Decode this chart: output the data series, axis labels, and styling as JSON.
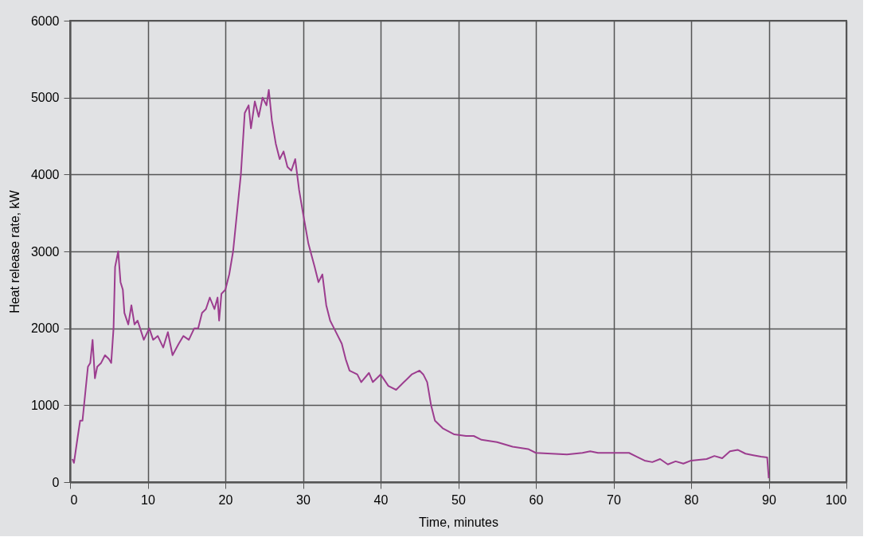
{
  "chart_data": {
    "type": "line",
    "xlabel": "Time, minutes",
    "ylabel": "Heat release rate, kW",
    "xlim": [
      0,
      100
    ],
    "xticks": [
      0,
      10,
      20,
      30,
      40,
      50,
      60,
      70,
      80,
      90,
      100
    ],
    "ylim": [
      0,
      6000
    ],
    "yticks": [
      0,
      1000,
      2000,
      3000,
      4000,
      5000,
      6000
    ],
    "grid": true,
    "marker": "none",
    "line_style": "solid",
    "series": [
      {
        "color": "#9c3d8f",
        "x": [
          0.3,
          0.5,
          1,
          1.3,
          1.6,
          2,
          2.3,
          2.6,
          2.9,
          3.2,
          3.5,
          4,
          4.5,
          5,
          5.3,
          5.6,
          5.8,
          6.2,
          6.5,
          6.8,
          7,
          7.5,
          7.9,
          8.3,
          8.7,
          9.5,
          10.2,
          10.7,
          11.3,
          12,
          12.6,
          13.2,
          14,
          14.6,
          15.3,
          16,
          16.5,
          17,
          17.5,
          18,
          18.6,
          19,
          19.2,
          19.5,
          20,
          20.5,
          21,
          21.5,
          22,
          22.5,
          23,
          23.3,
          23.8,
          24.3,
          24.8,
          25.3,
          25.6,
          26,
          26.5,
          27,
          27.5,
          28,
          28.5,
          29,
          29.5,
          30,
          30.7,
          31.5,
          32,
          32.5,
          33,
          33.5,
          34,
          35,
          35.5,
          36,
          37,
          37.5,
          38.5,
          39,
          40,
          41,
          42,
          43,
          44,
          45,
          45.5,
          46,
          46.5,
          47,
          48,
          49.5,
          51,
          52,
          53,
          55,
          57,
          59,
          60,
          62,
          64,
          66,
          67,
          68,
          70,
          72,
          73,
          74,
          75,
          76,
          77,
          78,
          79,
          80,
          82,
          83,
          84,
          85,
          86,
          87,
          88,
          89,
          89.8,
          90
        ],
        "values": [
          300,
          250,
          600,
          800,
          800,
          1200,
          1500,
          1550,
          1850,
          1350,
          1500,
          1550,
          1650,
          1600,
          1550,
          2000,
          2800,
          3000,
          2600,
          2500,
          2200,
          2050,
          2300,
          2050,
          2100,
          1850,
          2000,
          1850,
          1900,
          1750,
          1950,
          1650,
          1800,
          1900,
          1850,
          2000,
          2000,
          2200,
          2250,
          2400,
          2250,
          2400,
          2100,
          2450,
          2500,
          2700,
          3000,
          3500,
          4000,
          4800,
          4900,
          4600,
          4950,
          4750,
          5000,
          4900,
          5100,
          4700,
          4400,
          4200,
          4300,
          4100,
          4050,
          4200,
          3800,
          3500,
          3100,
          2800,
          2600,
          2700,
          2300,
          2100,
          2000,
          1800,
          1600,
          1450,
          1400,
          1300,
          1420,
          1300,
          1400,
          1250,
          1200,
          1300,
          1400,
          1450,
          1400,
          1300,
          1000,
          800,
          700,
          620,
          600,
          600,
          550,
          520,
          460,
          430,
          380,
          370,
          360,
          380,
          400,
          380,
          380,
          380,
          330,
          280,
          260,
          300,
          230,
          270,
          240,
          280,
          300,
          340,
          310,
          400,
          420,
          370,
          350,
          330,
          320,
          50
        ]
      }
    ]
  }
}
